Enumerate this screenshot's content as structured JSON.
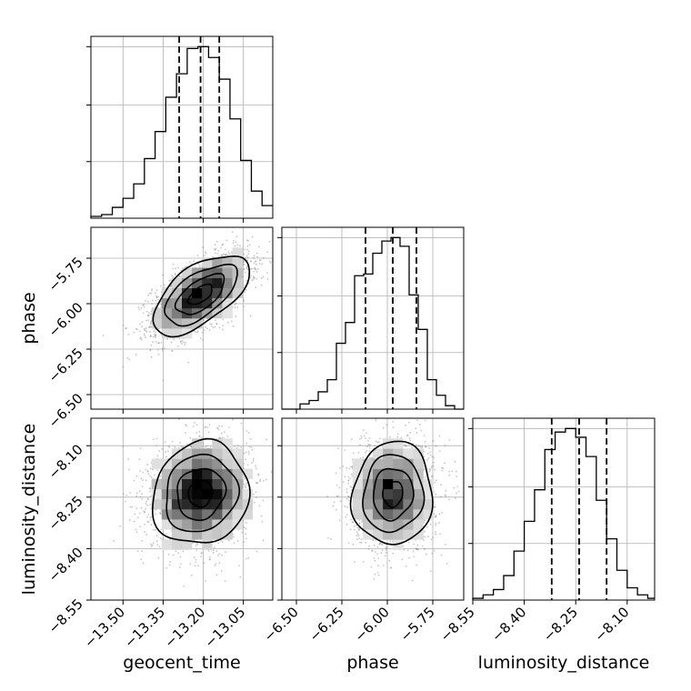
{
  "chart_data": {
    "type": "corner",
    "parameters": [
      "geocent_time",
      "phase",
      "luminosity_distance"
    ],
    "ranges": [
      [
        -13.62,
        -12.94
      ],
      [
        -6.58,
        -5.58
      ],
      [
        -8.55,
        -8.02
      ]
    ],
    "ticks": [
      [
        -13.5,
        -13.35,
        -13.2,
        -13.05
      ],
      [
        -6.5,
        -6.25,
        -6.0,
        -5.75
      ],
      [
        -8.55,
        -8.4,
        -8.25,
        -8.1
      ]
    ],
    "tick_labels": [
      [
        "−13.50",
        "−13.35",
        "−13.20",
        "−13.05"
      ],
      [
        "−6.50",
        "−6.25",
        "−6.00",
        "−5.75"
      ],
      [
        "−8.55",
        "−8.40",
        "−8.25",
        "−8.10"
      ]
    ],
    "quantiles": [
      [
        -13.29,
        -13.21,
        -13.14
      ],
      [
        -6.12,
        -5.97,
        -5.84
      ],
      [
        -8.32,
        -8.24,
        -8.16
      ]
    ],
    "histograms": [
      {
        "bin_edges": [
          -13.62,
          -13.58,
          -13.54,
          -13.5,
          -13.46,
          -13.42,
          -13.38,
          -13.34,
          -13.3,
          -13.26,
          -13.22,
          -13.18,
          -13.14,
          -13.1,
          -13.06,
          -13.02,
          -12.98,
          -12.94
        ],
        "counts": [
          1,
          2,
          6,
          11,
          19,
          33,
          48,
          67,
          80,
          94,
          95,
          89,
          77,
          55,
          32,
          15,
          7
        ]
      },
      {
        "bin_edges": [
          -6.58,
          -6.53,
          -6.48,
          -6.43,
          -6.38,
          -6.33,
          -6.28,
          -6.23,
          -6.18,
          -6.13,
          -6.08,
          -6.03,
          -5.98,
          -5.93,
          -5.88,
          -5.83,
          -5.78,
          -5.73,
          -5.68,
          -5.63,
          -5.58
        ],
        "counts": [
          0,
          0,
          3,
          5,
          10,
          17,
          38,
          50,
          77,
          78,
          90,
          97,
          99,
          94,
          66,
          46,
          17,
          8,
          2,
          0
        ]
      },
      {
        "bin_edges": [
          -8.55,
          -8.52,
          -8.49,
          -8.46,
          -8.43,
          -8.4,
          -8.37,
          -8.34,
          -8.31,
          -8.28,
          -8.25,
          -8.22,
          -8.19,
          -8.16,
          -8.13,
          -8.1,
          -8.07,
          -8.04,
          -8.02
        ],
        "counts": [
          1,
          3,
          6,
          14,
          28,
          45,
          63,
          86,
          96,
          98,
          93,
          82,
          57,
          35,
          17,
          7,
          3,
          1
        ]
      }
    ],
    "samples_2d": [
      {
        "x": 0,
        "y": 1,
        "mean": [
          -13.21,
          -5.95
        ],
        "std": [
          0.09,
          0.11
        ],
        "rho": 0.6
      },
      {
        "x": 0,
        "y": 2,
        "mean": [
          -13.21,
          -8.24
        ],
        "std": [
          0.09,
          0.075
        ],
        "rho": 0.1
      },
      {
        "x": 1,
        "y": 2,
        "mean": [
          -5.97,
          -8.24
        ],
        "std": [
          0.11,
          0.075
        ],
        "rho": 0.05
      }
    ],
    "grid": true,
    "colors": {
      "line": "#000000",
      "points": "#808080",
      "grid": "#b0b0b0"
    }
  }
}
